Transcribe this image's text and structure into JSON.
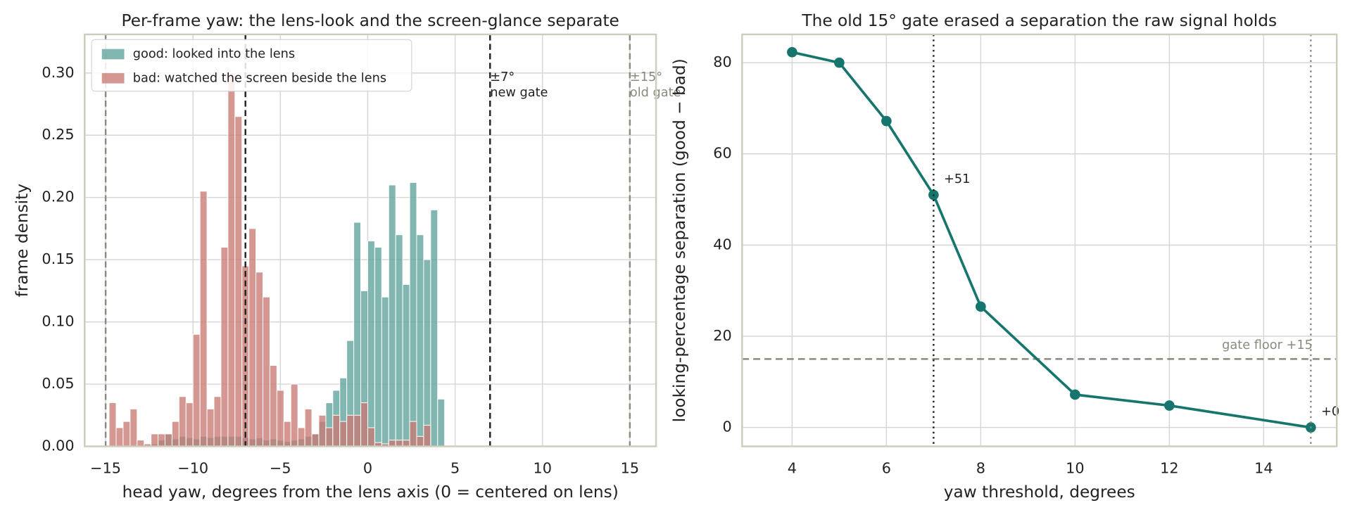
{
  "chart_data": [
    {
      "type": "histogram",
      "title": "Per-frame yaw: the lens-look and the screen-glance separate",
      "x_label": "head yaw, degrees from the lens axis (0 = centered on lens)",
      "y_label": "frame density",
      "bins": [
        -14.8,
        -14.4,
        -14.0,
        -13.6,
        -13.2,
        -12.8,
        -12.4,
        -12.0,
        -11.6,
        -11.2,
        -10.8,
        -10.4,
        -10.0,
        -9.6,
        -9.2,
        -8.8,
        -8.4,
        -8.0,
        -7.6,
        -7.2,
        -6.8,
        -6.4,
        -6.0,
        -5.6,
        -5.2,
        -4.8,
        -4.4,
        -4.0,
        -3.6,
        -3.2,
        -2.8,
        -2.4,
        -2.0,
        -1.6,
        -1.2,
        -0.8,
        -0.4,
        0.0,
        0.4,
        0.8,
        1.2,
        1.6,
        2.0,
        2.4,
        2.8,
        3.2,
        3.6,
        4.0,
        4.4
      ],
      "series": [
        {
          "name": "good: looked into the lens",
          "color": "#5fa39b",
          "values": [
            0,
            0,
            0,
            0,
            0,
            0,
            0.002,
            0.005,
            0.01,
            0.006,
            0.008,
            0.007,
            0.006,
            0.008,
            0.007,
            0.008,
            0.008,
            0.008,
            0.008,
            0.007,
            0.006,
            0.007,
            0.005,
            0.006,
            0.005,
            0.004,
            0.005,
            0.006,
            0.008,
            0.01,
            0.02,
            0.035,
            0.045,
            0.055,
            0.085,
            0.18,
            0.125,
            0.165,
            0.16,
            0.12,
            0.21,
            0.17,
            0.13,
            0.212,
            0.17,
            0.15,
            0.19,
            0.038
          ]
        },
        {
          "name": "bad: watched the screen beside the lens",
          "color": "#c97a73",
          "values": [
            0.035,
            0.015,
            0.02,
            0.03,
            0.005,
            0.002,
            0.01,
            0.01,
            0.01,
            0.02,
            0.04,
            0.035,
            0.09,
            0.205,
            0.03,
            0.04,
            0.16,
            0.3,
            0.265,
            0.145,
            0.175,
            0.14,
            0.12,
            0.065,
            0.045,
            0.02,
            0.05,
            0.015,
            0.03,
            0.01,
            0.025,
            0.015,
            0.025,
            0.02,
            0.025,
            0.025,
            0.035,
            0.015,
            0.003,
            0.002,
            0.005,
            0.005,
            0.005,
            0.02,
            0.008,
            0.017,
            0,
            0
          ]
        }
      ],
      "xlim": [
        -16.2,
        16.5
      ],
      "ylim": [
        0,
        0.331
      ],
      "xticks": [
        {
          "value": -15,
          "label": "−15"
        },
        {
          "value": -10,
          "label": "−10"
        },
        {
          "value": -5,
          "label": "−5"
        },
        0,
        5,
        10,
        15
      ],
      "yticks": [
        {
          "value": 0,
          "label": "0.00"
        },
        0.05,
        {
          "value": 0.1,
          "label": "0.10"
        },
        0.15,
        {
          "value": 0.2,
          "label": "0.20"
        },
        0.25,
        {
          "value": 0.3,
          "label": "0.30"
        }
      ],
      "grid": true,
      "legend": "upper left",
      "vlines": [
        {
          "x": -15,
          "color": "#8a8a7e"
        },
        {
          "x": 15,
          "color": "#8a8a7e",
          "lines": [
            "±15°",
            "old gate"
          ]
        },
        {
          "x": -7,
          "color": "#222222"
        },
        {
          "x": 7,
          "color": "#222222",
          "lines": [
            "±7°",
            "new gate"
          ]
        }
      ]
    },
    {
      "type": "line",
      "title": "The old 15° gate erased a separation the raw signal holds",
      "x_label": "yaw threshold, degrees",
      "y_label": "looking-percentage separation (good − bad)",
      "x": [
        4,
        5,
        6,
        7,
        8,
        10,
        12,
        15
      ],
      "values": [
        82.3,
        80,
        67.2,
        51,
        26.5,
        7.2,
        4.8,
        0
      ],
      "value_labels": [
        null,
        null,
        null,
        "+51",
        null,
        null,
        null,
        "+0"
      ],
      "color": "#16756d",
      "xlim": [
        2.94,
        15.55
      ],
      "ylim": [
        -4.15,
        86.2
      ],
      "xticks": [
        4,
        6,
        8,
        10,
        12,
        14
      ],
      "yticks": [
        0,
        20,
        40,
        60,
        80
      ],
      "grid": true,
      "vlines": [
        {
          "x": 7,
          "color": "#222222"
        },
        {
          "x": 15,
          "color": "#8a8a7e"
        }
      ],
      "hlines": [
        {
          "y": 15,
          "color": "#8a8a7e",
          "label": "gate floor +15"
        }
      ]
    }
  ]
}
